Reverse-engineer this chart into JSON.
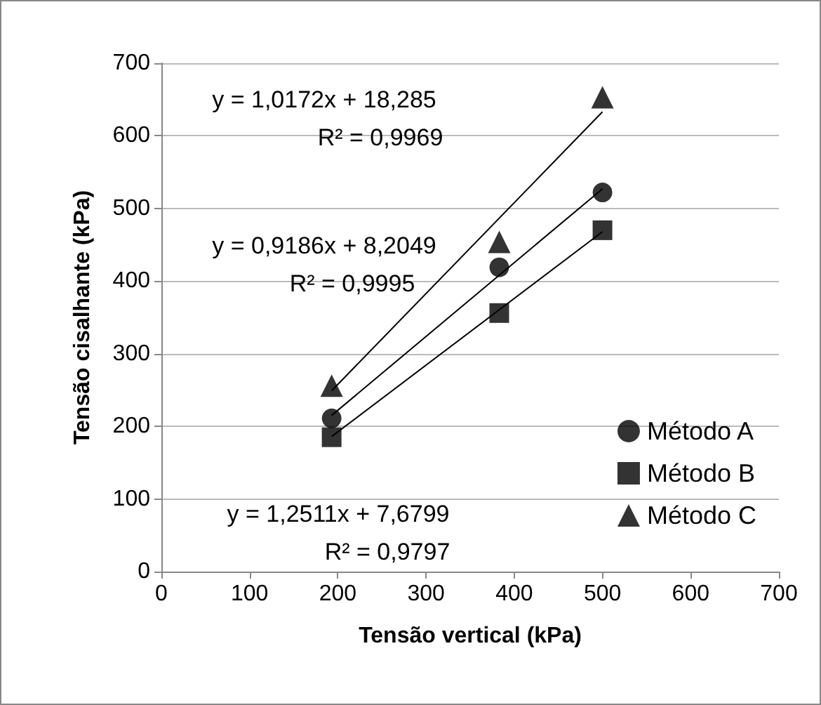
{
  "chart_data": {
    "type": "scatter",
    "xlabel": "Tensão vertical (kPa)",
    "ylabel": "Tensão cisalhante (kPa)",
    "xlim": [
      0,
      700
    ],
    "xticks": [
      0,
      100,
      200,
      300,
      400,
      500,
      600,
      700
    ],
    "ylim": [
      0,
      700
    ],
    "yticks": [
      0,
      100,
      200,
      300,
      400,
      500,
      600,
      700
    ],
    "grid": "y",
    "legend": "bottom right",
    "series": [
      {
        "name": "Método A",
        "color": "#000000",
        "marker": "circle",
        "x": [
          193,
          383,
          500
        ],
        "values": [
          211,
          419,
          522
        ]
      },
      {
        "name": "Método B",
        "color": "#000000",
        "marker": "square",
        "x": [
          193,
          383,
          500
        ],
        "values": [
          185,
          356,
          470
        ]
      },
      {
        "name": "Método C",
        "color": "#000000",
        "marker": "triangle",
        "x": [
          193,
          383,
          500
        ],
        "values": [
          256,
          454,
          653
        ]
      },
      {
        "type": "line",
        "color": "#000000",
        "marker": "none",
        "x": [
          193,
          500
        ],
        "values": [
          215,
          527
        ]
      },
      {
        "type": "line",
        "color": "#000000",
        "marker": "none",
        "x": [
          193,
          500
        ],
        "values": [
          186,
          468
        ]
      },
      {
        "type": "line",
        "color": "#000000",
        "marker": "none",
        "x": [
          193,
          500
        ],
        "values": [
          249,
          633
        ]
      }
    ],
    "annotations": [
      "y = 1,0172x + 18,285",
      "R² = 0,9969",
      "y = 0,9186x + 8,2049",
      "R² = 0,9995",
      "y = 1,2511x + 7,6799",
      "R² = 0,9797"
    ]
  }
}
